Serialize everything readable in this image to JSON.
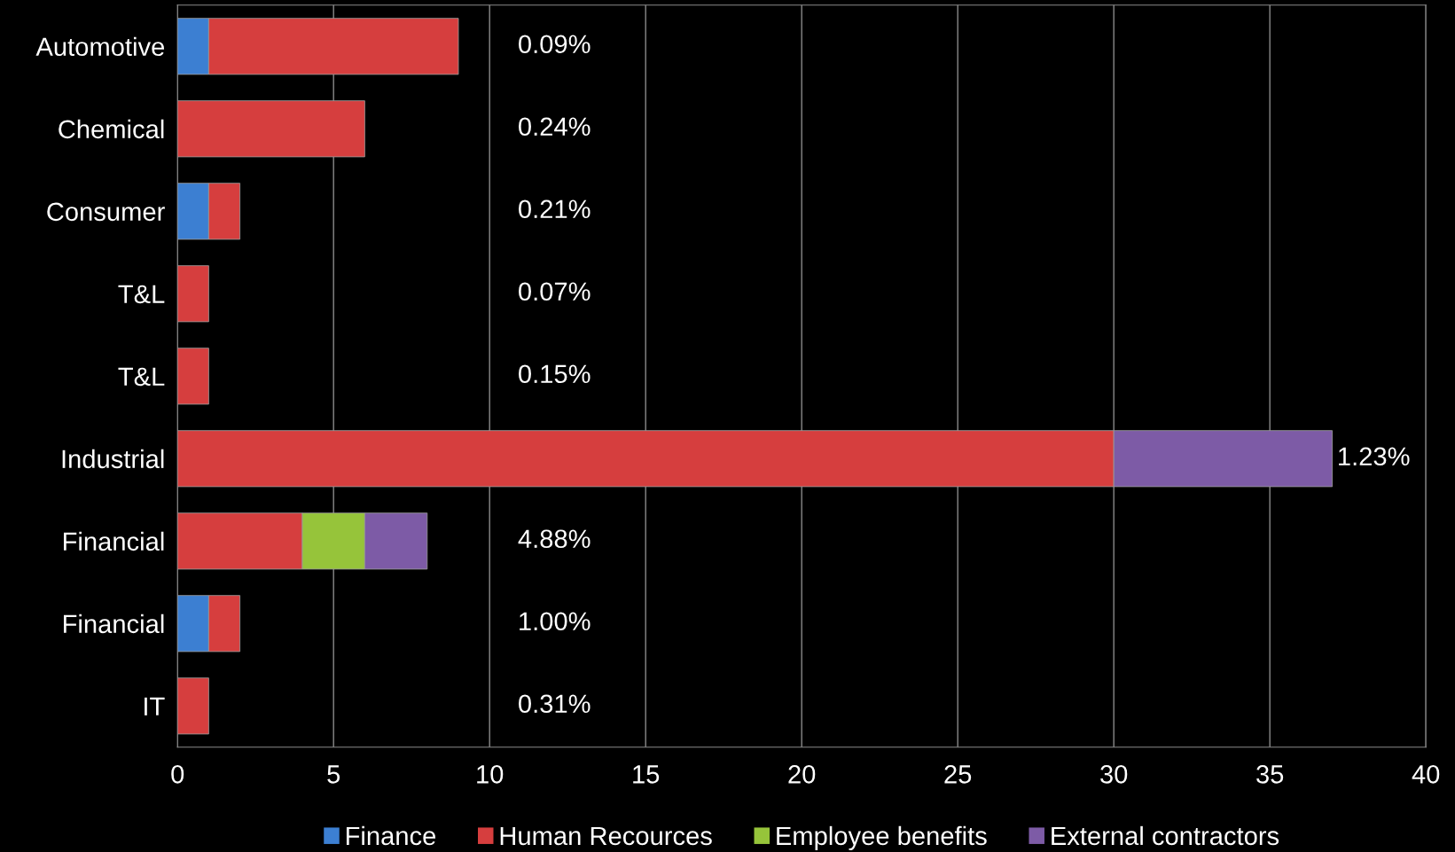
{
  "chart_data": {
    "type": "bar",
    "orientation": "horizontal",
    "stacked": true,
    "categories": [
      "Automotive",
      "Chemical",
      "Consumer",
      "T&L",
      "T&L",
      "Industrial",
      "Financial",
      "Financial",
      "IT"
    ],
    "series": [
      {
        "name": "Finance",
        "color": "#3c7fd2",
        "values": [
          1,
          null,
          1,
          null,
          null,
          null,
          null,
          1,
          null
        ]
      },
      {
        "name": "Human Recources",
        "color": "#d63e3e",
        "values": [
          8,
          6,
          1,
          1,
          1,
          30,
          4,
          1,
          1
        ]
      },
      {
        "name": "Employee benefits",
        "color": "#96c43a",
        "values": [
          null,
          null,
          null,
          null,
          null,
          null,
          2,
          null,
          null
        ]
      },
      {
        "name": "External contractors",
        "color": "#7d5ba6",
        "values": [
          null,
          null,
          null,
          null,
          null,
          7,
          2,
          null,
          null
        ]
      }
    ],
    "value_labels": [
      "0.09%",
      "0.24%",
      "0.21%",
      "0.07%",
      "0.15%",
      "1.23%",
      "4.88%",
      "1.00%",
      "0.31%"
    ],
    "xlim": [
      0,
      40
    ],
    "xticks": [
      0,
      5,
      10,
      15,
      20,
      25,
      30,
      35,
      40
    ],
    "grid": "x",
    "legend": "bottom"
  }
}
